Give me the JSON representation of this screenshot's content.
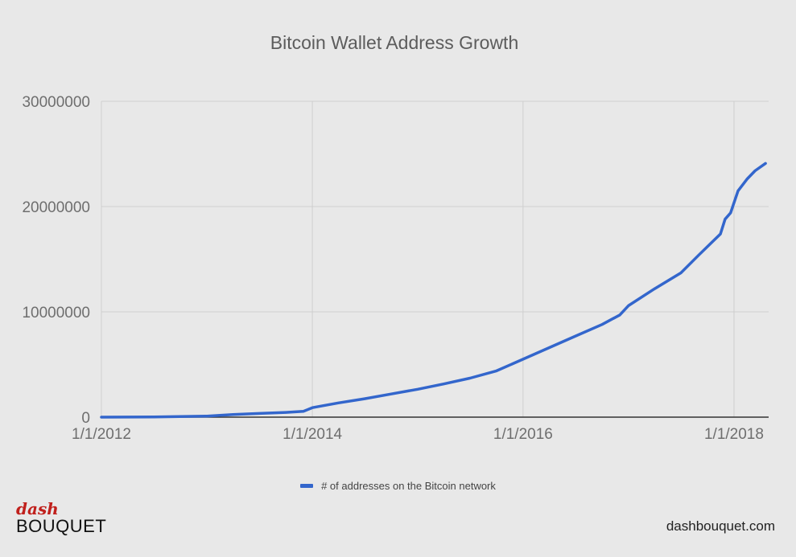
{
  "chart_data": {
    "type": "line",
    "title": "Bitcoin Wallet Address Growth",
    "xlabel": "",
    "ylabel": "",
    "x_ticks": [
      "1/1/2012",
      "1/1/2014",
      "1/1/2016",
      "1/1/2018"
    ],
    "xlim": [
      "2012-01-01",
      "2018-05-01"
    ],
    "y_ticks": [
      0,
      10000000,
      20000000,
      30000000
    ],
    "ylim": [
      0,
      30000000
    ],
    "grid": true,
    "legend_position": "bottom",
    "series": [
      {
        "name": "# of addresses on the Bitcoin network",
        "color": "#3366cc",
        "x": [
          "2012-01-01",
          "2012-07-01",
          "2013-01-01",
          "2013-04-01",
          "2013-07-01",
          "2013-10-01",
          "2013-12-01",
          "2014-01-01",
          "2014-04-01",
          "2014-07-01",
          "2014-10-01",
          "2015-01-01",
          "2015-04-01",
          "2015-07-01",
          "2015-10-01",
          "2016-01-01",
          "2016-04-01",
          "2016-07-01",
          "2016-10-01",
          "2016-12-01",
          "2017-01-01",
          "2017-04-01",
          "2017-07-01",
          "2017-09-01",
          "2017-11-15",
          "2017-12-01",
          "2017-12-20",
          "2018-01-15",
          "2018-02-15",
          "2018-03-15",
          "2018-04-20"
        ],
        "values": [
          0,
          20000,
          100000,
          250000,
          350000,
          450000,
          550000,
          900000,
          1350000,
          1750000,
          2200000,
          2650000,
          3150000,
          3700000,
          4400000,
          5500000,
          6600000,
          7700000,
          8800000,
          9700000,
          10600000,
          12200000,
          13700000,
          15400000,
          17400000,
          18800000,
          19400000,
          21500000,
          22600000,
          23400000,
          24100000
        ]
      }
    ]
  },
  "branding": {
    "logo_top": "dash",
    "logo_bottom": "BOUQUET",
    "site_url": "dashbouquet.com"
  }
}
